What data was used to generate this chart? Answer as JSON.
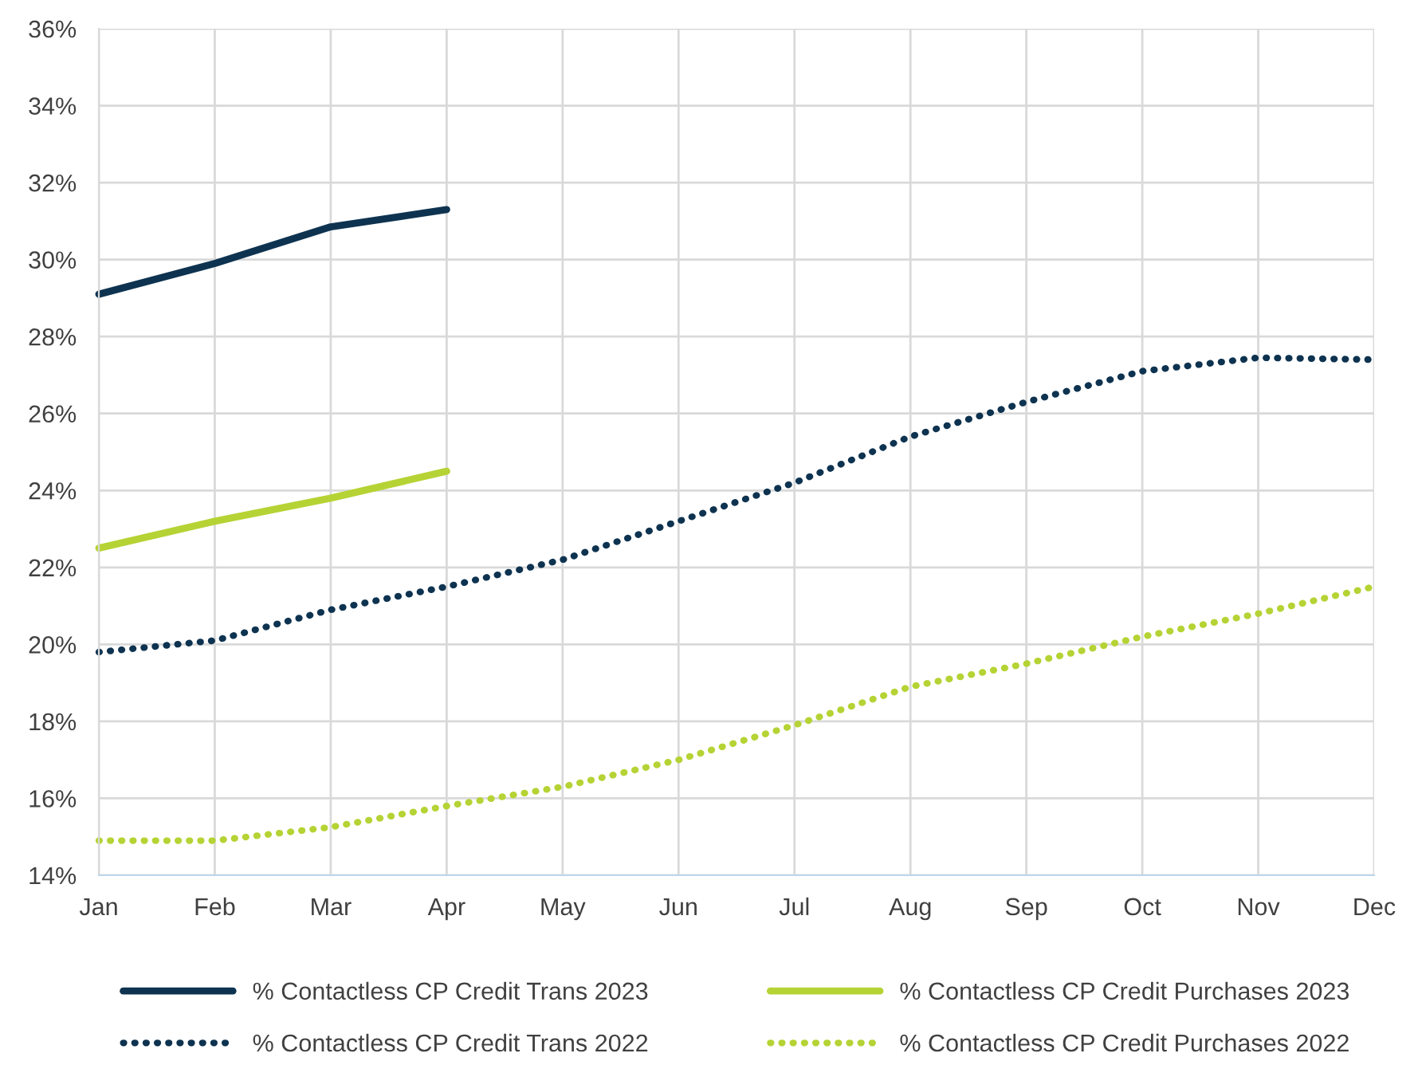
{
  "chart_data": {
    "type": "line",
    "categories": [
      "Jan",
      "Feb",
      "Mar",
      "Apr",
      "May",
      "Jun",
      "Jul",
      "Aug",
      "Sep",
      "Oct",
      "Nov",
      "Dec"
    ],
    "ylim": [
      14,
      36
    ],
    "yticks": [
      {
        "value": 14,
        "label": "14%"
      },
      {
        "value": 16,
        "label": "16%"
      },
      {
        "value": 18,
        "label": "18%"
      },
      {
        "value": 20,
        "label": "20%"
      },
      {
        "value": 22,
        "label": "22%"
      },
      {
        "value": 24,
        "label": "24%"
      },
      {
        "value": 26,
        "label": "26%"
      },
      {
        "value": 28,
        "label": "28%"
      },
      {
        "value": 30,
        "label": "30%"
      },
      {
        "value": 32,
        "label": "32%"
      },
      {
        "value": 34,
        "label": "34%"
      },
      {
        "value": 36,
        "label": "36%"
      }
    ],
    "grid": true,
    "legend": "bottom",
    "marker": "none",
    "series": [
      {
        "name": "% Contactless CP Credit Trans 2023",
        "color": "#0e3350",
        "line_style": "solid",
        "values": [
          29.1,
          29.9,
          30.85,
          31.3,
          null,
          null,
          null,
          null,
          null,
          null,
          null,
          null
        ]
      },
      {
        "name": "% Contactless CP Credit Purchases 2023",
        "color": "#b5d334",
        "line_style": "solid",
        "values": [
          22.5,
          23.2,
          23.8,
          24.5,
          null,
          null,
          null,
          null,
          null,
          null,
          null,
          null
        ]
      },
      {
        "name": "% Contactless CP Credit Trans 2022",
        "color": "#0e3350",
        "line_style": "dotted",
        "values": [
          19.8,
          20.1,
          20.9,
          21.5,
          22.2,
          23.2,
          24.2,
          25.4,
          26.3,
          27.1,
          27.45,
          27.4
        ]
      },
      {
        "name": "% Contactless CP Credit Purchases 2022",
        "color": "#b5d334",
        "line_style": "dotted",
        "values": [
          14.9,
          14.9,
          15.25,
          15.8,
          16.3,
          17.0,
          17.9,
          18.9,
          19.5,
          20.2,
          20.8,
          21.5
        ]
      }
    ]
  }
}
